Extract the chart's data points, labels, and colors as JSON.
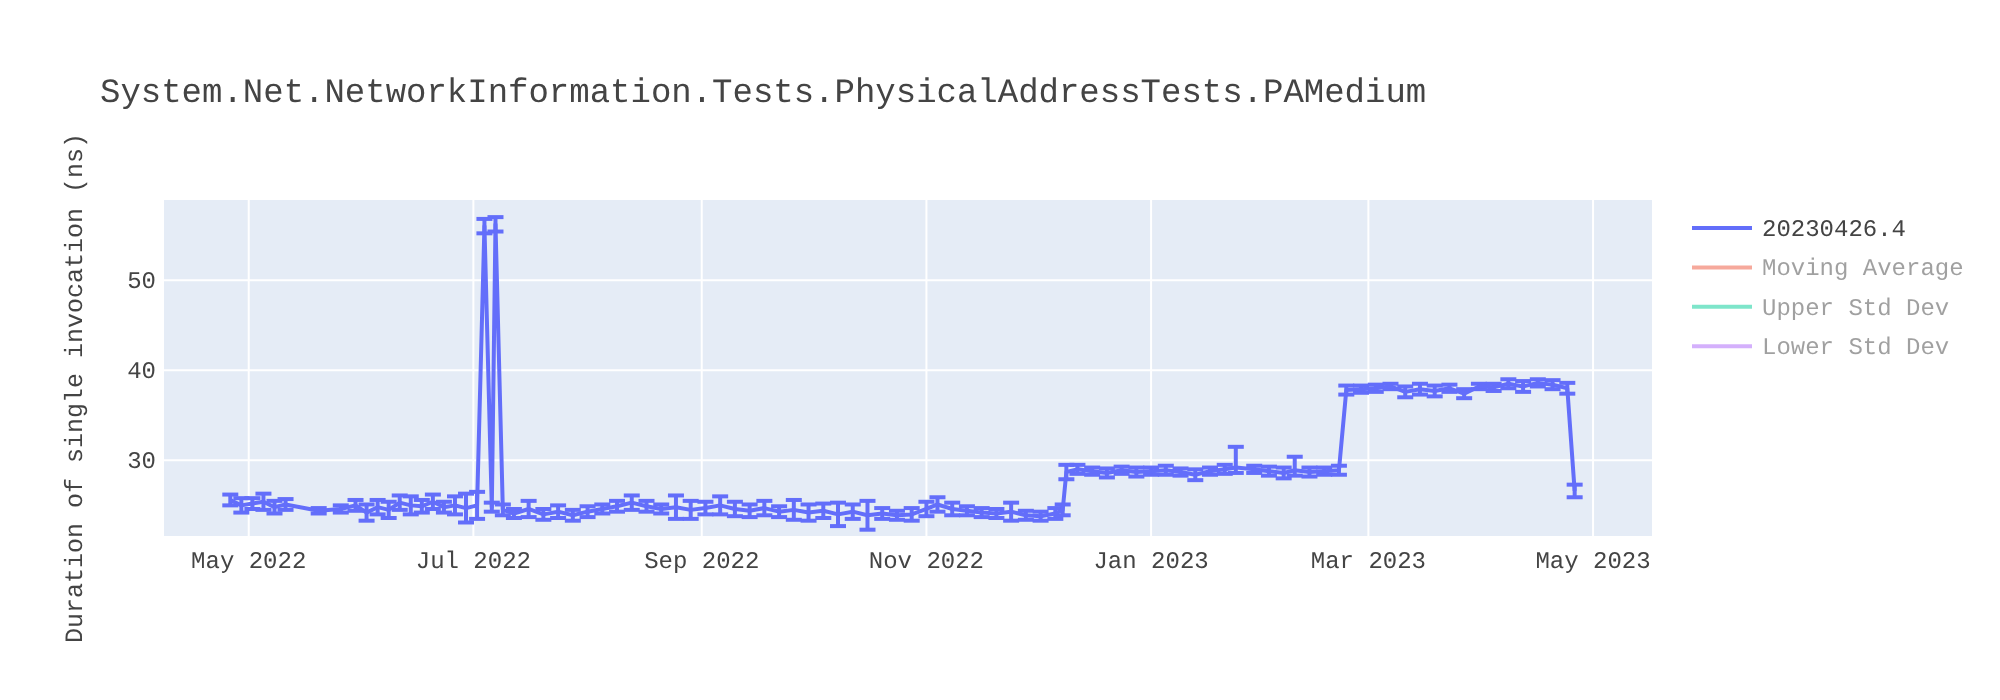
{
  "chart_data": {
    "type": "line",
    "title": "System.Net.NetworkInformation.Tests.PhysicalAddressTests.PAMedium",
    "ylabel": "Duration of single invocation (ns)",
    "x": [
      "2022-04-26",
      "2022-04-29",
      "2022-05-02",
      "2022-05-05",
      "2022-05-08",
      "2022-05-11",
      "2022-05-20",
      "2022-05-26",
      "2022-05-30",
      "2022-06-02",
      "2022-06-05",
      "2022-06-08",
      "2022-06-11",
      "2022-06-14",
      "2022-06-17",
      "2022-06-20",
      "2022-06-23",
      "2022-06-26",
      "2022-06-29",
      "2022-07-02",
      "2022-07-04",
      "2022-07-06",
      "2022-07-07",
      "2022-07-09",
      "2022-07-12",
      "2022-07-16",
      "2022-07-20",
      "2022-07-24",
      "2022-07-28",
      "2022-08-01",
      "2022-08-05",
      "2022-08-09",
      "2022-08-13",
      "2022-08-17",
      "2022-08-21",
      "2022-08-25",
      "2022-08-29",
      "2022-09-02",
      "2022-09-06",
      "2022-09-10",
      "2022-09-14",
      "2022-09-18",
      "2022-09-22",
      "2022-09-26",
      "2022-09-30",
      "2022-10-04",
      "2022-10-08",
      "2022-10-12",
      "2022-10-16",
      "2022-10-20",
      "2022-10-24",
      "2022-10-28",
      "2022-11-01",
      "2022-11-04",
      "2022-11-08",
      "2022-11-12",
      "2022-11-16",
      "2022-11-20",
      "2022-11-24",
      "2022-11-28",
      "2022-12-02",
      "2022-12-06",
      "2022-12-08",
      "2022-12-09",
      "2022-12-12",
      "2022-12-16",
      "2022-12-20",
      "2022-12-24",
      "2022-12-28",
      "2023-01-01",
      "2023-01-05",
      "2023-01-09",
      "2023-01-13",
      "2023-01-17",
      "2023-01-21",
      "2023-01-24",
      "2023-01-29",
      "2023-02-02",
      "2023-02-06",
      "2023-02-09",
      "2023-02-13",
      "2023-02-17",
      "2023-02-21",
      "2023-02-23",
      "2023-02-27",
      "2023-03-03",
      "2023-03-07",
      "2023-03-11",
      "2023-03-15",
      "2023-03-19",
      "2023-03-23",
      "2023-03-27",
      "2023-03-31",
      "2023-04-04",
      "2023-04-08",
      "2023-04-12",
      "2023-04-16",
      "2023-04-20",
      "2023-04-24",
      "2023-04-26"
    ],
    "series": [
      {
        "name": "20230426.4",
        "color": "#636efa",
        "values": [
          25.6,
          25.0,
          25.2,
          25.4,
          24.8,
          25.1,
          24.4,
          24.6,
          25.0,
          24.2,
          24.8,
          24.5,
          25.3,
          25.0,
          24.9,
          25.4,
          24.8,
          25.0,
          24.7,
          25.0,
          56.0,
          24.8,
          56.2,
          24.5,
          24.1,
          24.6,
          24.0,
          24.3,
          23.9,
          24.3,
          24.6,
          24.9,
          25.3,
          24.9,
          24.6,
          24.8,
          24.5,
          24.7,
          25.0,
          24.6,
          24.4,
          24.7,
          24.3,
          24.5,
          24.2,
          24.4,
          24.0,
          24.3,
          23.9,
          24.1,
          23.9,
          24.0,
          24.6,
          25.1,
          24.6,
          24.4,
          24.2,
          24.1,
          24.3,
          23.9,
          23.8,
          24.1,
          24.5,
          28.7,
          29.0,
          28.8,
          28.6,
          28.9,
          28.7,
          28.8,
          28.9,
          28.7,
          28.4,
          28.8,
          29.0,
          29.2,
          29.0,
          28.8,
          28.6,
          28.9,
          28.7,
          28.8,
          28.9,
          37.8,
          37.9,
          38.0,
          38.2,
          37.6,
          37.9,
          37.7,
          38.0,
          37.4,
          38.2,
          38.1,
          38.5,
          38.2,
          38.6,
          38.4,
          38.0,
          26.6
        ],
        "errors": [
          0.6,
          0.8,
          0.6,
          0.9,
          0.7,
          0.6,
          0.3,
          0.4,
          0.6,
          0.9,
          0.8,
          0.9,
          0.8,
          1.0,
          0.7,
          0.8,
          0.6,
          1.0,
          1.6,
          1.5,
          0.8,
          0.5,
          0.8,
          0.6,
          0.5,
          0.9,
          0.6,
          0.7,
          0.6,
          0.6,
          0.5,
          0.6,
          0.8,
          0.6,
          0.5,
          1.3,
          1.0,
          0.7,
          1.0,
          0.8,
          0.7,
          0.8,
          0.6,
          1.1,
          0.9,
          0.8,
          1.3,
          0.8,
          1.6,
          0.6,
          0.5,
          0.7,
          0.8,
          0.8,
          0.7,
          0.5,
          0.5,
          0.5,
          1.0,
          0.5,
          0.5,
          0.6,
          0.6,
          0.8,
          0.5,
          0.4,
          0.5,
          0.4,
          0.5,
          0.4,
          0.5,
          0.4,
          0.6,
          0.4,
          0.5,
          [
            28.6,
            31.5
          ],
          0.4,
          0.5,
          0.6,
          [
            28.3,
            30.4
          ],
          0.5,
          0.4,
          0.5,
          0.5,
          0.4,
          0.4,
          0.3,
          0.6,
          0.6,
          0.6,
          0.4,
          0.5,
          0.3,
          0.4,
          0.5,
          0.6,
          0.4,
          0.5,
          0.6,
          0.7
        ]
      },
      {
        "name": "Moving Average",
        "color": "#ef553b",
        "values": [
          null,
          null,
          null,
          null,
          null,
          null,
          null,
          null,
          null,
          null,
          null,
          null,
          null,
          null,
          null,
          null,
          null,
          null,
          null,
          null,
          null,
          null,
          null,
          null,
          null,
          null,
          null,
          null,
          null,
          null,
          null,
          null,
          null,
          null,
          null,
          null,
          null,
          null,
          null,
          null,
          null,
          null,
          null,
          null,
          null,
          null,
          null,
          null,
          null,
          null,
          null,
          null,
          null,
          null,
          null,
          null,
          null,
          null,
          null,
          null,
          null,
          null,
          null,
          null,
          null,
          null,
          null,
          null,
          null,
          null,
          null,
          null,
          null,
          null,
          null,
          null,
          null,
          null,
          null,
          null,
          null,
          null,
          null,
          null,
          null,
          null,
          null,
          null,
          null,
          null,
          null,
          null,
          null,
          null,
          null,
          null,
          null,
          null,
          null,
          null
        ]
      },
      {
        "name": "Upper Std Dev",
        "color": "#00cc96",
        "values": [
          null,
          null,
          null,
          null,
          null,
          null,
          null,
          null,
          null,
          null,
          null,
          null,
          null,
          null,
          null,
          null,
          null,
          null,
          null,
          null,
          null,
          null,
          null,
          null,
          null,
          null,
          null,
          null,
          null,
          null,
          null,
          null,
          null,
          null,
          null,
          null,
          null,
          null,
          null,
          null,
          null,
          null,
          null,
          null,
          null,
          null,
          null,
          null,
          null,
          null,
          null,
          null,
          null,
          null,
          null,
          null,
          null,
          null,
          null,
          null,
          null,
          null,
          null,
          null,
          null,
          null,
          null,
          null,
          null,
          null,
          null,
          null,
          null,
          null,
          null,
          null,
          null,
          null,
          null,
          null,
          null,
          null,
          null,
          null,
          null,
          null,
          null,
          null,
          null,
          null,
          null,
          null,
          null,
          null,
          null,
          null,
          null,
          null,
          null,
          null
        ]
      },
      {
        "name": "Lower Std Dev",
        "color": "#ab63fa",
        "values": [
          null,
          null,
          null,
          null,
          null,
          null,
          null,
          null,
          null,
          null,
          null,
          null,
          null,
          null,
          null,
          null,
          null,
          null,
          null,
          null,
          null,
          null,
          null,
          null,
          null,
          null,
          null,
          null,
          null,
          null,
          null,
          null,
          null,
          null,
          null,
          null,
          null,
          null,
          null,
          null,
          null,
          null,
          null,
          null,
          null,
          null,
          null,
          null,
          null,
          null,
          null,
          null,
          null,
          null,
          null,
          null,
          null,
          null,
          null,
          null,
          null,
          null,
          null,
          null,
          null,
          null,
          null,
          null,
          null,
          null,
          null,
          null,
          null,
          null,
          null,
          null,
          null,
          null,
          null,
          null,
          null,
          null,
          null,
          null,
          null,
          null,
          null,
          null,
          null,
          null,
          null,
          null,
          null,
          null,
          null,
          null,
          null,
          null,
          null,
          null
        ]
      }
    ],
    "xlim": [
      "2022-04-08",
      "2023-05-17"
    ],
    "xticks": [
      {
        "value": "2022-05-01",
        "label": "May 2022"
      },
      {
        "value": "2022-07-01",
        "label": "Jul 2022"
      },
      {
        "value": "2022-09-01",
        "label": "Sep 2022"
      },
      {
        "value": "2022-11-01",
        "label": "Nov 2022"
      },
      {
        "value": "2023-01-01",
        "label": "Jan 2023"
      },
      {
        "value": "2023-03-01",
        "label": "Mar 2023"
      },
      {
        "value": "2023-05-01",
        "label": "May 2023"
      }
    ],
    "ylim": [
      21.6,
      58.9
    ],
    "yticks": [
      30,
      40,
      50
    ],
    "grid": true,
    "legend": "right"
  }
}
